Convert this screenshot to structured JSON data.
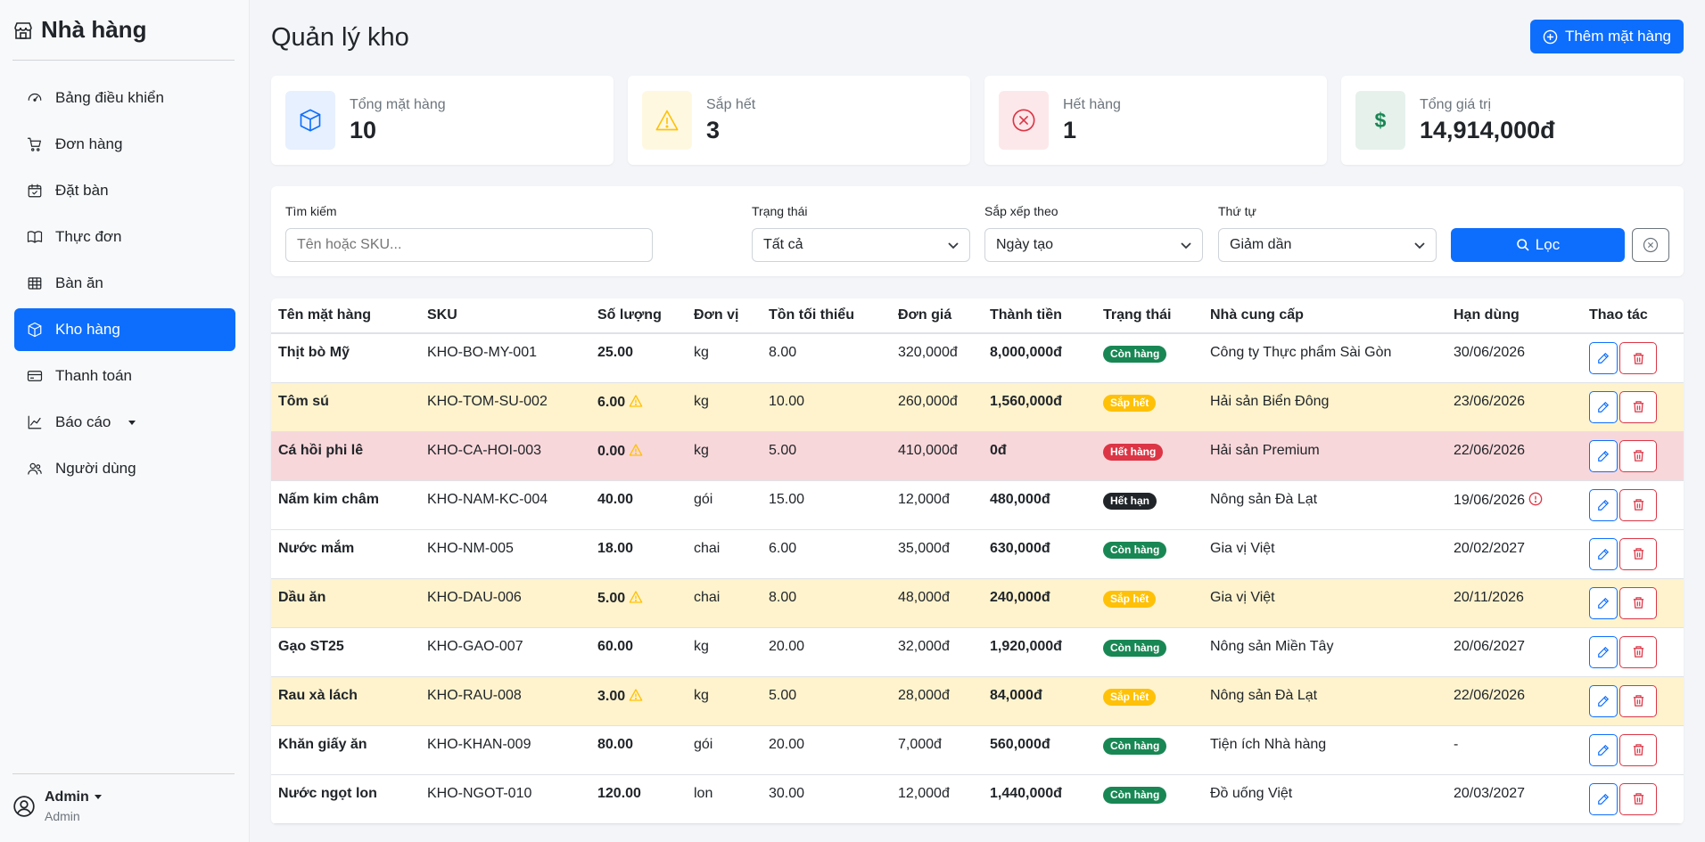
{
  "app": {
    "title": "Nhà hàng"
  },
  "nav": [
    {
      "label": "Bảng điều khiển",
      "icon": "speedometer-icon"
    },
    {
      "label": "Đơn hàng",
      "icon": "cart-icon"
    },
    {
      "label": "Đặt bàn",
      "icon": "calendar-check-icon"
    },
    {
      "label": "Thực đơn",
      "icon": "book-icon"
    },
    {
      "label": "Bàn ăn",
      "icon": "table-icon"
    },
    {
      "label": "Kho hàng",
      "icon": "box-icon",
      "active": true
    },
    {
      "label": "Thanh toán",
      "icon": "credit-card-icon"
    },
    {
      "label": "Báo cáo",
      "icon": "graph-icon",
      "dropdown": true
    },
    {
      "label": "Người dùng",
      "icon": "people-icon"
    }
  ],
  "user": {
    "name": "Admin",
    "role": "Admin"
  },
  "page": {
    "title": "Quản lý kho",
    "add_button": "Thêm mặt hàng"
  },
  "stats": [
    {
      "label": "Tổng mặt hàng",
      "value": "10",
      "icon": "box-icon",
      "color": "#0d6efd"
    },
    {
      "label": "Sắp hết",
      "value": "3",
      "icon": "warning-icon",
      "color": "#ffc107"
    },
    {
      "label": "Hết hàng",
      "value": "1",
      "icon": "x-circle-icon",
      "color": "#dc3545"
    },
    {
      "label": "Tổng giá trị",
      "value": "14,914,000đ",
      "icon": "dollar-icon",
      "color": "#198754"
    }
  ],
  "filters": {
    "search_label": "Tìm kiếm",
    "search_placeholder": "Tên hoặc SKU...",
    "status_label": "Trạng thái",
    "status_value": "Tất cả",
    "sort_label": "Sắp xếp theo",
    "sort_value": "Ngày tạo",
    "order_label": "Thứ tự",
    "order_value": "Giảm dần",
    "filter_button": "Lọc"
  },
  "table": {
    "headers": [
      "Tên mặt hàng",
      "SKU",
      "Số lượng",
      "Đơn vị",
      "Tồn tối thiểu",
      "Đơn giá",
      "Thành tiền",
      "Trạng thái",
      "Nhà cung cấp",
      "Hạn dùng",
      "Thao tác"
    ],
    "rows": [
      {
        "name": "Thịt bò Mỹ",
        "sku": "KHO-BO-MY-001",
        "qty": "25.00",
        "unit": "kg",
        "min": "8.00",
        "price": "320,000đ",
        "total": "8,000,000đ",
        "status": "Còn hàng",
        "status_type": "green",
        "supplier": "Công ty Thực phẩm Sài Gòn",
        "expiry": "30/06/2026",
        "row_type": "normal"
      },
      {
        "name": "Tôm sú",
        "sku": "KHO-TOM-SU-002",
        "qty": "6.00",
        "unit": "kg",
        "min": "10.00",
        "price": "260,000đ",
        "total": "1,560,000đ",
        "status": "Sắp hết",
        "status_type": "yellow",
        "supplier": "Hải sản Biển Đông",
        "expiry": "23/06/2026",
        "row_type": "warn",
        "qty_warn": true
      },
      {
        "name": "Cá hồi phi lê",
        "sku": "KHO-CA-HOI-003",
        "qty": "0.00",
        "unit": "kg",
        "min": "5.00",
        "price": "410,000đ",
        "total": "0đ",
        "status": "Hết hàng",
        "status_type": "red",
        "supplier": "Hải sản Premium",
        "expiry": "22/06/2026",
        "row_type": "danger",
        "qty_warn": true
      },
      {
        "name": "Nấm kim châm",
        "sku": "KHO-NAM-KC-004",
        "qty": "40.00",
        "unit": "gói",
        "min": "15.00",
        "price": "12,000đ",
        "total": "480,000đ",
        "status": "Hết hạn",
        "status_type": "dark",
        "supplier": "Nông sản Đà Lạt",
        "expiry": "19/06/2026",
        "row_type": "normal",
        "expiry_alert": true
      },
      {
        "name": "Nước mắm",
        "sku": "KHO-NM-005",
        "qty": "18.00",
        "unit": "chai",
        "min": "6.00",
        "price": "35,000đ",
        "total": "630,000đ",
        "status": "Còn hàng",
        "status_type": "green",
        "supplier": "Gia vị Việt",
        "expiry": "20/02/2027",
        "row_type": "normal"
      },
      {
        "name": "Dầu ăn",
        "sku": "KHO-DAU-006",
        "qty": "5.00",
        "unit": "chai",
        "min": "8.00",
        "price": "48,000đ",
        "total": "240,000đ",
        "status": "Sắp hết",
        "status_type": "yellow",
        "supplier": "Gia vị Việt",
        "expiry": "20/11/2026",
        "row_type": "warn",
        "qty_warn": true
      },
      {
        "name": "Gạo ST25",
        "sku": "KHO-GAO-007",
        "qty": "60.00",
        "unit": "kg",
        "min": "20.00",
        "price": "32,000đ",
        "total": "1,920,000đ",
        "status": "Còn hàng",
        "status_type": "green",
        "supplier": "Nông sản Miền Tây",
        "expiry": "20/06/2027",
        "row_type": "normal"
      },
      {
        "name": "Rau xà lách",
        "sku": "KHO-RAU-008",
        "qty": "3.00",
        "unit": "kg",
        "min": "5.00",
        "price": "28,000đ",
        "total": "84,000đ",
        "status": "Sắp hết",
        "status_type": "yellow",
        "supplier": "Nông sản Đà Lạt",
        "expiry": "22/06/2026",
        "row_type": "warn",
        "qty_warn": true
      },
      {
        "name": "Khăn giấy ăn",
        "sku": "KHO-KHAN-009",
        "qty": "80.00",
        "unit": "gói",
        "min": "20.00",
        "price": "7,000đ",
        "total": "560,000đ",
        "status": "Còn hàng",
        "status_type": "green",
        "supplier": "Tiện ích Nhà hàng",
        "expiry": "-",
        "row_type": "normal"
      },
      {
        "name": "Nước ngọt lon",
        "sku": "KHO-NGOT-010",
        "qty": "120.00",
        "unit": "lon",
        "min": "30.00",
        "price": "12,000đ",
        "total": "1,440,000đ",
        "status": "Còn hàng",
        "status_type": "green",
        "supplier": "Đồ uống Việt",
        "expiry": "20/03/2027",
        "row_type": "normal"
      }
    ]
  }
}
